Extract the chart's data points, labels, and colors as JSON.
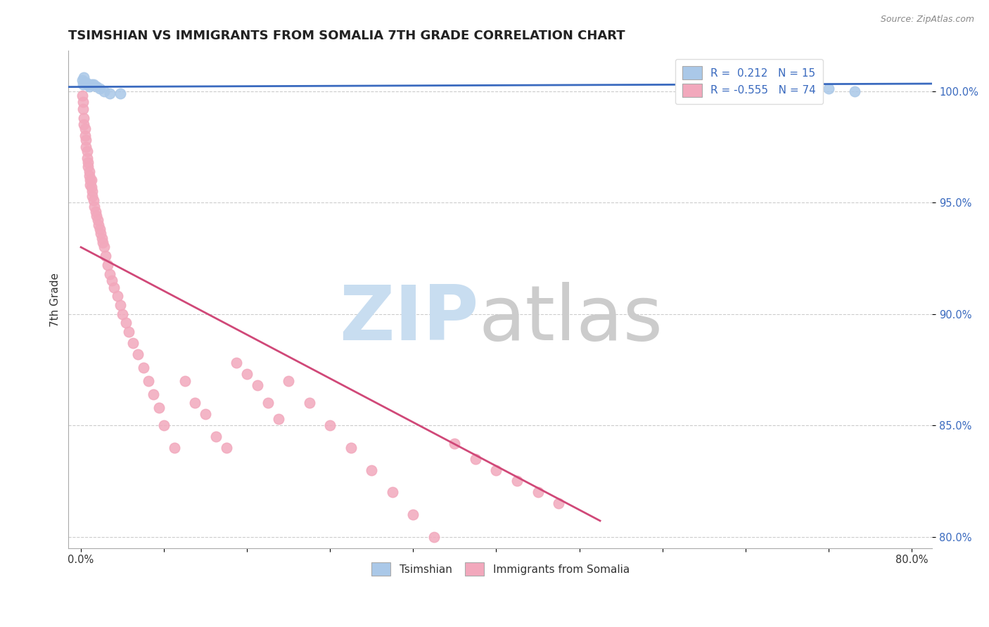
{
  "title": "TSIMSHIAN VS IMMIGRANTS FROM SOMALIA 7TH GRADE CORRELATION CHART",
  "source": "Source: ZipAtlas.com",
  "ylabel": "7th Grade",
  "tsimshian_label": "Tsimshian",
  "somalia_label": "Immigrants from Somalia",
  "tsimshian_R": "0.212",
  "tsimshian_N": "15",
  "somalia_R": "-0.555",
  "somalia_N": "74",
  "tsimshian_color": "#aac8e8",
  "somalia_color": "#f2a8bc",
  "tsimshian_line_color": "#3a6abf",
  "somalia_line_color": "#d04878",
  "watermark_zip_color": "#c8ddf0",
  "watermark_atlas_color": "#cccccc",
  "ylim_min": 0.795,
  "ylim_max": 1.018,
  "xlim_min": -0.012,
  "xlim_max": 0.82,
  "ytick_values": [
    0.8,
    0.85,
    0.9,
    0.95,
    1.0
  ],
  "ytick_labels": [
    "80.0%",
    "85.0%",
    "90.0%",
    "95.0%",
    "100.0%"
  ],
  "xtick_left_label": "0.0%",
  "xtick_right_label": "80.0%",
  "tsimshian_x": [
    0.001,
    0.002,
    0.003,
    0.005,
    0.006,
    0.008,
    0.01,
    0.012,
    0.015,
    0.018,
    0.022,
    0.028,
    0.038,
    0.72,
    0.745
  ],
  "tsimshian_y": [
    1.005,
    1.003,
    1.006,
    1.004,
    1.003,
    1.002,
    1.003,
    1.003,
    1.002,
    1.001,
    1.0,
    0.999,
    0.999,
    1.001,
    1.0
  ],
  "somalia_x": [
    0.001,
    0.002,
    0.002,
    0.003,
    0.003,
    0.004,
    0.004,
    0.005,
    0.005,
    0.006,
    0.006,
    0.007,
    0.007,
    0.008,
    0.008,
    0.009,
    0.009,
    0.01,
    0.01,
    0.011,
    0.011,
    0.012,
    0.013,
    0.014,
    0.015,
    0.016,
    0.017,
    0.018,
    0.019,
    0.02,
    0.021,
    0.022,
    0.024,
    0.026,
    0.028,
    0.03,
    0.032,
    0.035,
    0.038,
    0.04,
    0.043,
    0.046,
    0.05,
    0.055,
    0.06,
    0.065,
    0.07,
    0.075,
    0.08,
    0.09,
    0.1,
    0.11,
    0.12,
    0.13,
    0.14,
    0.15,
    0.16,
    0.17,
    0.18,
    0.19,
    0.2,
    0.22,
    0.24,
    0.26,
    0.28,
    0.3,
    0.32,
    0.34,
    0.36,
    0.38,
    0.4,
    0.42,
    0.44,
    0.46
  ],
  "somalia_y": [
    0.998,
    0.995,
    0.992,
    0.988,
    0.985,
    0.983,
    0.98,
    0.978,
    0.975,
    0.973,
    0.97,
    0.968,
    0.966,
    0.964,
    0.962,
    0.96,
    0.958,
    0.96,
    0.957,
    0.955,
    0.953,
    0.951,
    0.948,
    0.946,
    0.944,
    0.942,
    0.94,
    0.938,
    0.936,
    0.934,
    0.932,
    0.93,
    0.926,
    0.922,
    0.918,
    0.915,
    0.912,
    0.908,
    0.904,
    0.9,
    0.896,
    0.892,
    0.887,
    0.882,
    0.876,
    0.87,
    0.864,
    0.858,
    0.85,
    0.84,
    0.87,
    0.86,
    0.855,
    0.845,
    0.84,
    0.878,
    0.873,
    0.868,
    0.86,
    0.853,
    0.87,
    0.86,
    0.85,
    0.84,
    0.83,
    0.82,
    0.81,
    0.8,
    0.842,
    0.835,
    0.83,
    0.825,
    0.82,
    0.815
  ]
}
